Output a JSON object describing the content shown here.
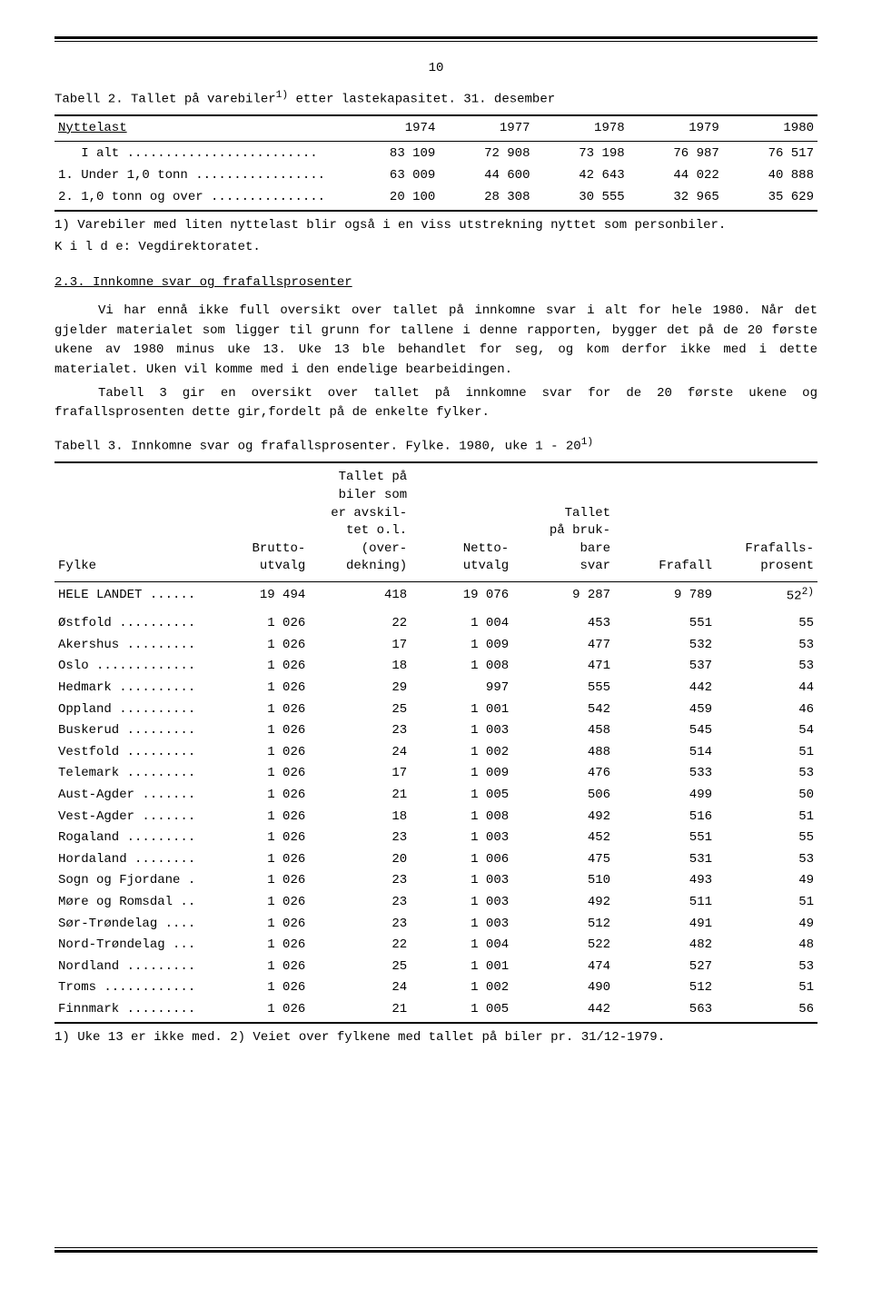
{
  "page_number": "10",
  "table2": {
    "caption_pre": "Tabell 2.  Tallet på varebiler",
    "caption_sup": "1)",
    "caption_post": " etter lastekapasitet.  31. desember",
    "header_label": "Nyttelast",
    "years": [
      "1974",
      "1977",
      "1978",
      "1979",
      "1980"
    ],
    "rows": [
      {
        "label": "   I alt .........................",
        "vals": [
          "83 109",
          "72 908",
          "73 198",
          "76 987",
          "76 517"
        ]
      },
      {
        "label": "1. Under 1,0 tonn .................",
        "vals": [
          "63 009",
          "44 600",
          "42 643",
          "44 022",
          "40 888"
        ]
      },
      {
        "label": "2. 1,0 tonn og over ...............",
        "vals": [
          "20 100",
          "28 308",
          "30 555",
          "32 965",
          "35 629"
        ]
      }
    ],
    "footnote": "1) Varebiler med liten nyttelast blir også i en viss utstrekning nyttet som personbiler.",
    "source": "K i l d e: Vegdirektoratet."
  },
  "section": {
    "heading": "2.3.  Innkomne svar og frafallsprosenter",
    "para1": "Vi har ennå ikke full oversikt over tallet på innkomne svar i alt for hele 1980.  Når det gjelder materialet som ligger til grunn for tallene i denne rapporten, bygger det på de 20 første ukene av 1980 minus uke 13.  Uke 13 ble behandlet for seg, og kom derfor ikke med i dette materialet.  Uken vil komme med i den endelige bearbeidingen.",
    "para2": "Tabell 3 gir en oversikt over tallet på innkomne svar for de 20 første ukene og frafallsprosenten dette gir,fordelt på de enkelte fylker."
  },
  "table3": {
    "caption_pre": "Tabell 3.  Innkomne svar og frafallsprosenter.  Fylke.  1980, uke 1 - 20",
    "caption_sup": "1)",
    "headers": [
      "Fylke",
      "Brutto-\nutvalg",
      "Tallet på\nbiler som\ner avskil-\ntet o.l.\n(over-\ndekning)",
      "Netto-\nutvalg",
      "Tallet\npå bruk-\nbare\nsvar",
      "Frafall",
      "Frafalls-\nprosent"
    ],
    "total_row": {
      "label": "HELE LANDET ......",
      "vals": [
        "19 494",
        "418",
        "19 076",
        "9 287",
        "9 789",
        "52"
      ],
      "sup": "2)"
    },
    "rows": [
      {
        "label": "Østfold ..........",
        "vals": [
          "1 026",
          "22",
          "1 004",
          "453",
          "551",
          "55"
        ]
      },
      {
        "label": "Akershus .........",
        "vals": [
          "1 026",
          "17",
          "1 009",
          "477",
          "532",
          "53"
        ]
      },
      {
        "label": "Oslo .............",
        "vals": [
          "1 026",
          "18",
          "1 008",
          "471",
          "537",
          "53"
        ]
      },
      {
        "label": "Hedmark ..........",
        "vals": [
          "1 026",
          "29",
          "997",
          "555",
          "442",
          "44"
        ]
      },
      {
        "label": "Oppland ..........",
        "vals": [
          "1 026",
          "25",
          "1 001",
          "542",
          "459",
          "46"
        ]
      },
      {
        "label": "Buskerud .........",
        "vals": [
          "1 026",
          "23",
          "1 003",
          "458",
          "545",
          "54"
        ]
      },
      {
        "label": "Vestfold .........",
        "vals": [
          "1 026",
          "24",
          "1 002",
          "488",
          "514",
          "51"
        ]
      },
      {
        "label": "Telemark .........",
        "vals": [
          "1 026",
          "17",
          "1 009",
          "476",
          "533",
          "53"
        ]
      },
      {
        "label": "Aust-Agder .......",
        "vals": [
          "1 026",
          "21",
          "1 005",
          "506",
          "499",
          "50"
        ]
      },
      {
        "label": "Vest-Agder .......",
        "vals": [
          "1 026",
          "18",
          "1 008",
          "492",
          "516",
          "51"
        ]
      },
      {
        "label": "Rogaland .........",
        "vals": [
          "1 026",
          "23",
          "1 003",
          "452",
          "551",
          "55"
        ]
      },
      {
        "label": "Hordaland ........",
        "vals": [
          "1 026",
          "20",
          "1 006",
          "475",
          "531",
          "53"
        ]
      },
      {
        "label": "Sogn og Fjordane .",
        "vals": [
          "1 026",
          "23",
          "1 003",
          "510",
          "493",
          "49"
        ]
      },
      {
        "label": "Møre og Romsdal ..",
        "vals": [
          "1 026",
          "23",
          "1 003",
          "492",
          "511",
          "51"
        ]
      },
      {
        "label": "Sør-Trøndelag ....",
        "vals": [
          "1 026",
          "23",
          "1 003",
          "512",
          "491",
          "49"
        ]
      },
      {
        "label": "Nord-Trøndelag ...",
        "vals": [
          "1 026",
          "22",
          "1 004",
          "522",
          "482",
          "48"
        ]
      },
      {
        "label": "Nordland .........",
        "vals": [
          "1 026",
          "25",
          "1 001",
          "474",
          "527",
          "53"
        ]
      },
      {
        "label": "Troms ............",
        "vals": [
          "1 026",
          "24",
          "1 002",
          "490",
          "512",
          "51"
        ]
      },
      {
        "label": "Finnmark .........",
        "vals": [
          "1 026",
          "21",
          "1 005",
          "442",
          "563",
          "56"
        ]
      }
    ],
    "footnote": "1) Uke 13 er ikke med.  2) Veiet over fylkene med tallet på biler pr. 31/12-1979."
  },
  "styling": {
    "font_family": "Courier New, monospace",
    "font_size_pt": 10,
    "text_color": "#000000",
    "background_color": "#ffffff",
    "rule_color": "#000000"
  }
}
